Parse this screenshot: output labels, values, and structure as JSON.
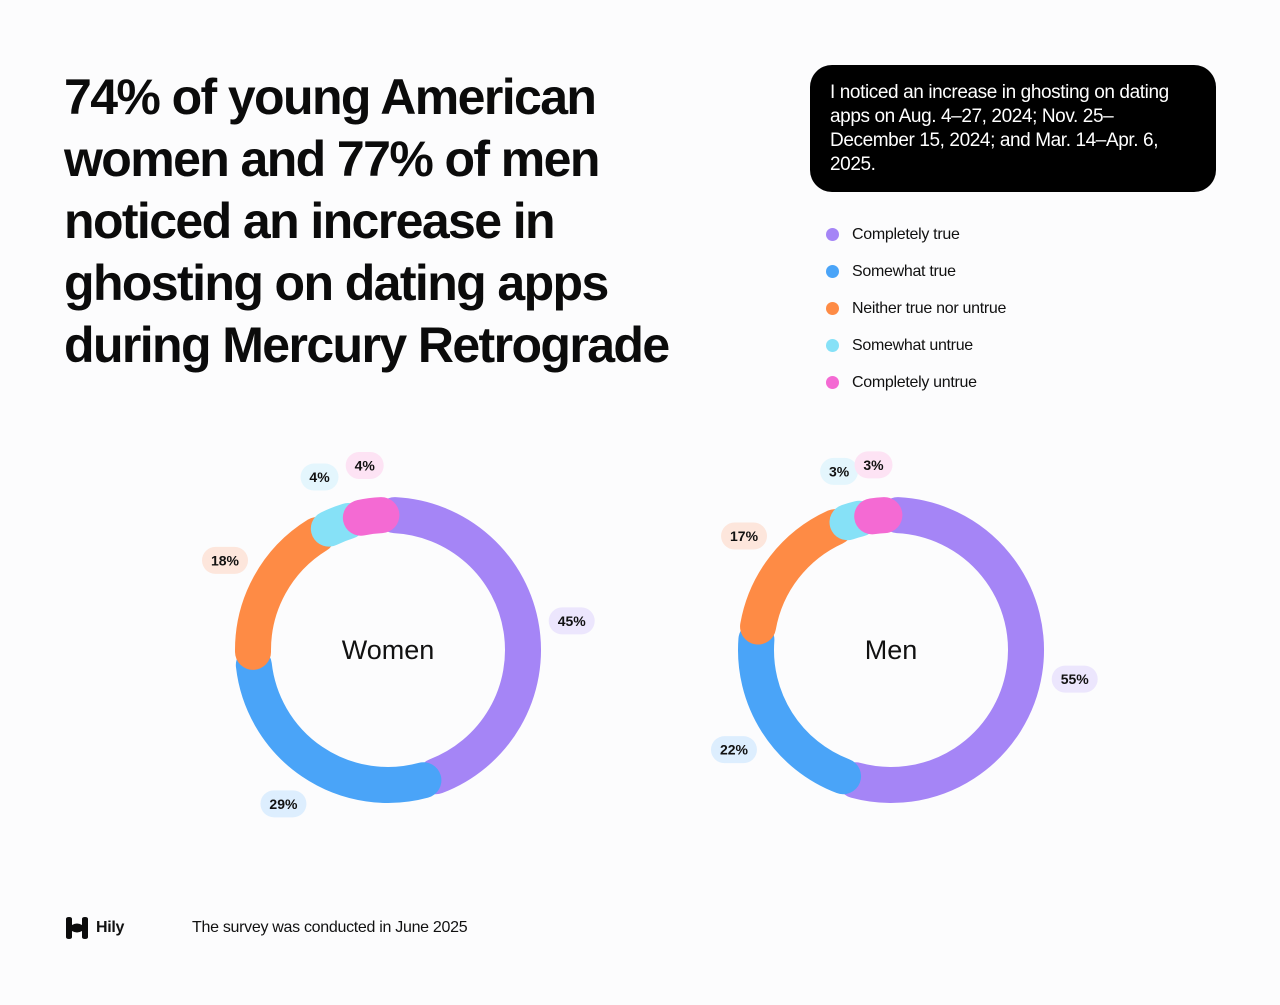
{
  "headline": "74% of young American women and 77% of men noticed an increase in ghosting on dating apps during Mercury Retrograde",
  "question": "I noticed an increase in ghosting on dating apps on Aug. 4–27, 2024; Nov. 25–December 15, 2024; and Mar. 14–Apr. 6, 2025.",
  "legend": [
    {
      "label": "Completely true",
      "color": "#a585f6"
    },
    {
      "label": "Somewhat true",
      "color": "#4aa4f8"
    },
    {
      "label": "Neither true nor untrue",
      "color": "#fe8b45"
    },
    {
      "label": "Somewhat untrue",
      "color": "#86e1f7"
    },
    {
      "label": "Completely untrue",
      "color": "#f46ad3"
    }
  ],
  "chart_data": [
    {
      "type": "donut",
      "center_label": "Women",
      "categories": [
        "Completely true",
        "Somewhat true",
        "Neither true nor untrue",
        "Somewhat untrue",
        "Completely untrue"
      ],
      "values": [
        45,
        29,
        18,
        4,
        4
      ],
      "data_labels": [
        "45%",
        "29%",
        "18%",
        "4%",
        "4%"
      ]
    },
    {
      "type": "donut",
      "center_label": "Men",
      "categories": [
        "Completely true",
        "Somewhat true",
        "Neither true nor untrue",
        "Somewhat untrue",
        "Completely untrue"
      ],
      "values": [
        55,
        22,
        17,
        3,
        3
      ],
      "data_labels": [
        "55%",
        "22%",
        "17%",
        "3%",
        "3%"
      ]
    }
  ],
  "label_bg_colors": [
    "#ece6fd",
    "#ddeefe",
    "#fde6dc",
    "#e4f6fd",
    "#fde3f4"
  ],
  "footer": {
    "brand": "Hily",
    "note": "The survey was conducted in June 2025"
  }
}
